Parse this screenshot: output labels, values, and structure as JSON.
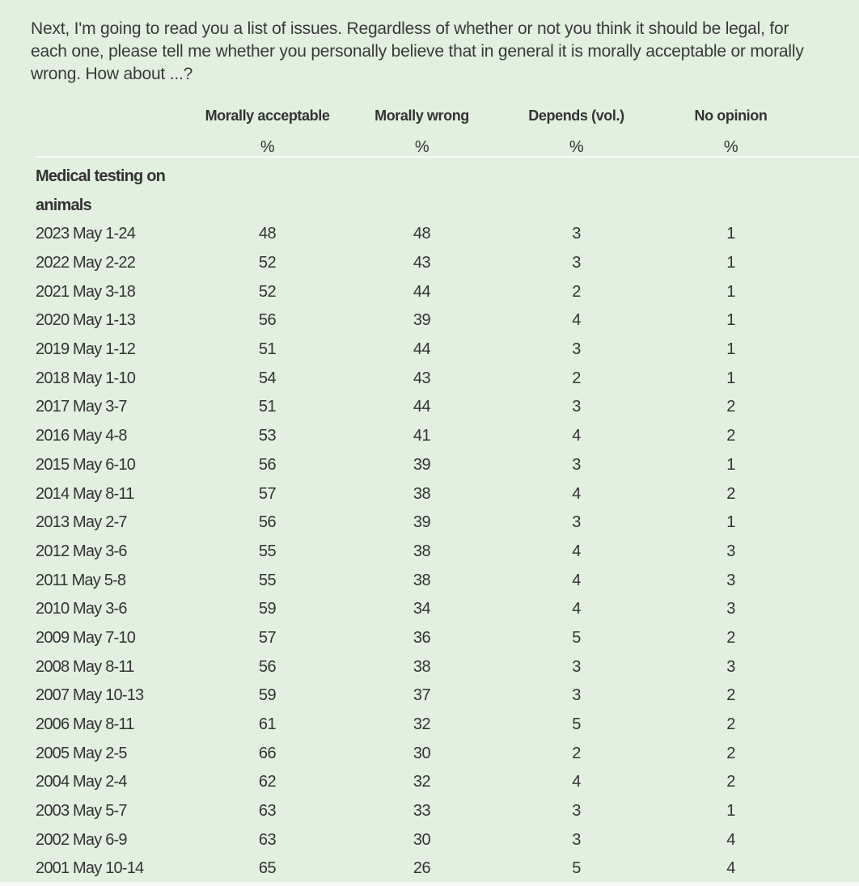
{
  "question": "Next, I'm going to read you a list of issues. Regardless of whether or not you think it should be legal, for each one, please tell me whether you personally believe that in general it is morally acceptable or morally wrong. How about ...?",
  "columns": [
    "Morally acceptable",
    "Morally wrong",
    "Depends (vol.)",
    "No opinion"
  ],
  "units": [
    "%",
    "%",
    "%",
    "%"
  ],
  "group_line1": "Medical testing on",
  "group_line2": "animals",
  "rows": [
    {
      "date": "2023 May 1-24",
      "values": [
        "48",
        "48",
        "3",
        "1"
      ]
    },
    {
      "date": "2022 May 2-22",
      "values": [
        "52",
        "43",
        "3",
        "1"
      ]
    },
    {
      "date": "2021 May 3-18",
      "values": [
        "52",
        "44",
        "2",
        "1"
      ]
    },
    {
      "date": "2020 May 1-13",
      "values": [
        "56",
        "39",
        "4",
        "1"
      ]
    },
    {
      "date": "2019 May 1-12",
      "values": [
        "51",
        "44",
        "3",
        "1"
      ]
    },
    {
      "date": "2018 May 1-10",
      "values": [
        "54",
        "43",
        "2",
        "1"
      ]
    },
    {
      "date": "2017 May 3-7",
      "values": [
        "51",
        "44",
        "3",
        "2"
      ]
    },
    {
      "date": "2016 May 4-8",
      "values": [
        "53",
        "41",
        "4",
        "2"
      ]
    },
    {
      "date": "2015 May 6-10",
      "values": [
        "56",
        "39",
        "3",
        "1"
      ]
    },
    {
      "date": "2014 May 8-11",
      "values": [
        "57",
        "38",
        "4",
        "2"
      ]
    },
    {
      "date": "2013 May 2-7",
      "values": [
        "56",
        "39",
        "3",
        "1"
      ]
    },
    {
      "date": "2012 May 3-6",
      "values": [
        "55",
        "38",
        "4",
        "3"
      ]
    },
    {
      "date": "2011 May 5-8",
      "values": [
        "55",
        "38",
        "4",
        "3"
      ]
    },
    {
      "date": "2010 May 3-6",
      "values": [
        "59",
        "34",
        "4",
        "3"
      ]
    },
    {
      "date": "2009 May 7-10",
      "values": [
        "57",
        "36",
        "5",
        "2"
      ]
    },
    {
      "date": "2008 May 8-11",
      "values": [
        "56",
        "38",
        "3",
        "3"
      ]
    },
    {
      "date": "2007 May 10-13",
      "values": [
        "59",
        "37",
        "3",
        "2"
      ]
    },
    {
      "date": "2006 May 8-11",
      "values": [
        "61",
        "32",
        "5",
        "2"
      ]
    },
    {
      "date": "2005 May 2-5",
      "values": [
        "66",
        "30",
        "2",
        "2"
      ]
    },
    {
      "date": "2004 May 2-4",
      "values": [
        "62",
        "32",
        "4",
        "2"
      ]
    },
    {
      "date": "2003 May 5-7",
      "values": [
        "63",
        "33",
        "3",
        "1"
      ]
    },
    {
      "date": "2002 May 6-9",
      "values": [
        "63",
        "30",
        "3",
        "4"
      ]
    },
    {
      "date": "2001 May 10-14",
      "values": [
        "65",
        "26",
        "5",
        "4"
      ]
    }
  ],
  "colors": {
    "background": "#e2f0e0",
    "text": "#333333"
  }
}
